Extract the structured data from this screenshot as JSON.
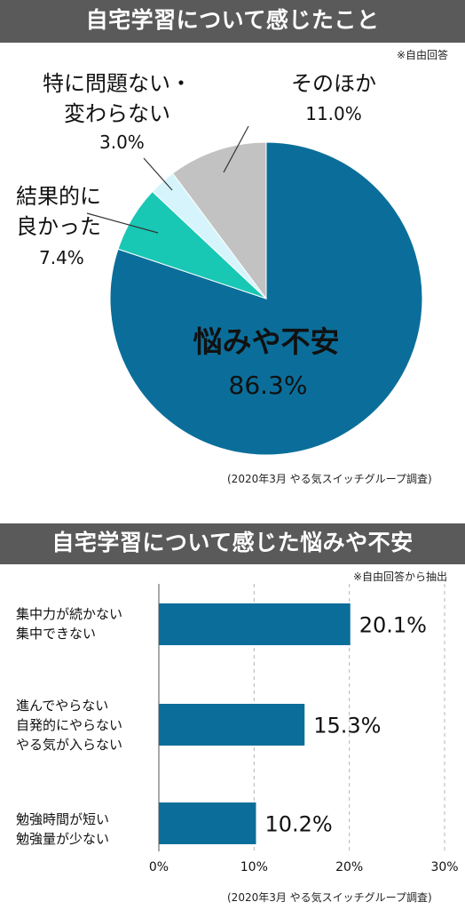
{
  "colors": {
    "primary": "#0b6e9a",
    "teal": "#19c7b5",
    "light": "#d6f4fb",
    "gray": "#c2c2c2",
    "banner": "#5a5a5a"
  },
  "pie": {
    "heading": "自宅学習について感じたこと",
    "note": "※自由回答",
    "source": "(2020年3月 やる気スイッチグループ調査)",
    "chart_data": {
      "type": "pie",
      "title": "自宅学習について感じたこと",
      "slices": [
        {
          "label": "悩みや不安",
          "value": 86.3,
          "text": "86.3%"
        },
        {
          "label": "結果的に良かった",
          "label_lines": [
            "結果的に",
            "良かった"
          ],
          "value": 7.4,
          "text": "7.4%"
        },
        {
          "label": "問題ない・変わらない",
          "label_lines": [
            "特に問題ない・",
            "変わらない"
          ],
          "value": 3.0,
          "text": "3.0%"
        },
        {
          "label": "そのほか",
          "value": 11.0,
          "text": "11.0%"
        }
      ]
    }
  },
  "bar": {
    "heading": "自宅学習について感じた悩みや不安",
    "note": "※自由回答から抽出",
    "source": "(2020年3月 やる気スイッチグループ調査)",
    "chart_data": {
      "type": "bar",
      "orientation": "horizontal",
      "title": "自宅学習について感じた悩みや不安",
      "categories": [
        [
          "集中力が続かない",
          "集中できない"
        ],
        [
          "進んでやらない",
          "自発的にやらない",
          "やる気が入らない"
        ],
        [
          "勉強時間が短い",
          "勉強量が少ない"
        ]
      ],
      "values": [
        20.1,
        15.3,
        10.2
      ],
      "value_labels": [
        "20.1%",
        "15.3%",
        "10.2%"
      ],
      "ticks": [
        "0%",
        "10%",
        "20%",
        "30%"
      ],
      "xlim": [
        0,
        30
      ],
      "grid": "dashed vertical"
    }
  }
}
